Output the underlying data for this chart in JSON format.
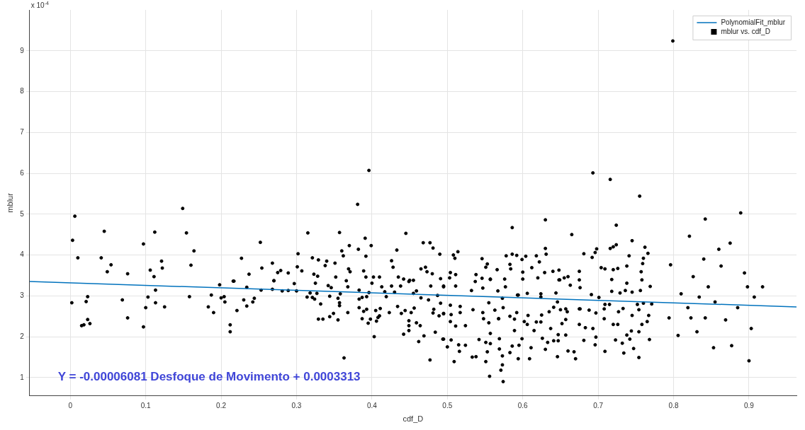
{
  "chart_data": {
    "type": "scatter",
    "xlabel": "cdf_D",
    "ylabel": "mblur",
    "xlim": [
      -0.054,
      0.963
    ],
    "xticks": [
      0,
      0.1,
      0.2,
      0.3,
      0.4,
      0.5,
      0.6,
      0.7,
      0.8,
      0.9
    ],
    "ylim": [
      0.55,
      10
    ],
    "yticks": [
      1,
      2,
      3,
      4,
      5,
      6,
      7,
      8,
      9
    ],
    "grid": true,
    "legend": "top right",
    "marker": "circle",
    "annotations": [
      "x 10$^{-4}$",
      "Y = -0.00006081 Desfoque de Movimento + 0.0003313"
    ],
    "series": [
      {
        "name": "PolynomialFit_mblur",
        "type": "line",
        "color": "#0072bd",
        "marker": "none",
        "x": [
          -0.054,
          0.963
        ],
        "values": [
          3.35,
          2.73
        ]
      },
      {
        "name": "mblur vs. cdf_D",
        "color": "#000000",
        "x": [
          0.006,
          0.003,
          0.01,
          0.045,
          0.041,
          0.054,
          0.049,
          0.076,
          0.097,
          0.112,
          0.106,
          0.111,
          0.121,
          0.122,
          0.149,
          0.154,
          0.164,
          0.16,
          0.216,
          0.227,
          0.002,
          0.015,
          0.018,
          0.021,
          0.023,
          0.023,
          0.026,
          0.069,
          0.076,
          0.097,
          0.1,
          0.103,
          0.113,
          0.113,
          0.125,
          0.158,
          0.183,
          0.187,
          0.19,
          0.198,
          0.2,
          0.204,
          0.205,
          0.212,
          0.212,
          0.217,
          0.221,
          0.396,
          0.381,
          0.315,
          0.357,
          0.252,
          0.302,
          0.391,
          0.445,
          0.468,
          0.477,
          0.481,
          0.49,
          0.37,
          0.382,
          0.399,
          0.36,
          0.362,
          0.392,
          0.321,
          0.329,
          0.34,
          0.338,
          0.351,
          0.268,
          0.254,
          0.279,
          0.275,
          0.289,
          0.301,
          0.307,
          0.369,
          0.371,
          0.389,
          0.426,
          0.428,
          0.433,
          0.465,
          0.471,
          0.473,
          0.48,
          0.435,
          0.442,
          0.45,
          0.455,
          0.491,
          0.237,
          0.27,
          0.323,
          0.328,
          0.352,
          0.392,
          0.402,
          0.41,
          0.693,
          0.716,
          0.755,
          0.63,
          0.586,
          0.665,
          0.724,
          0.745,
          0.724,
          0.72,
          0.716,
          0.762,
          0.766,
          0.698,
          0.696,
          0.692,
          0.681,
          0.63,
          0.631,
          0.622,
          0.618,
          0.578,
          0.586,
          0.592,
          0.599,
          0.604,
          0.583,
          0.584,
          0.6,
          0.612,
          0.629,
          0.64,
          0.648,
          0.675,
          0.508,
          0.514,
          0.51,
          0.504,
          0.511,
          0.546,
          0.553,
          0.551,
          0.566,
          0.538,
          0.546,
          0.557,
          0.726,
          0.738,
          0.741,
          0.76,
          0.759,
          0.757,
          0.72,
          0.704,
          0.709,
          0.66,
          0.655,
          0.648,
          0.363,
          0.477,
          0.403,
          0.462,
          0.469,
          0.484,
          0.494,
          0.442,
          0.449,
          0.449,
          0.459,
          0.464,
          0.449,
          0.395,
          0.398,
          0.406,
          0.387,
          0.329,
          0.335,
          0.355,
          0.344,
          0.349,
          0.368,
          0.408,
          0.41,
          0.389,
          0.383,
          0.393,
          0.405,
          0.411,
          0.423,
          0.434,
          0.439,
          0.444,
          0.452,
          0.456,
          0.481,
          0.482,
          0.489,
          0.495,
          0.332,
          0.357,
          0.357,
          0.355,
          0.344,
          0.314,
          0.321,
          0.324,
          0.327,
          0.318,
          0.23,
          0.234,
          0.242,
          0.244,
          0.253,
          0.268,
          0.281,
          0.289,
          0.3,
          0.234,
          0.27,
          0.297,
          0.325,
          0.342,
          0.346,
          0.366,
          0.368,
          0.358,
          0.383,
          0.387,
          0.393,
          0.396,
          0.383,
          0.4,
          0.413,
          0.426,
          0.417,
          0.419,
          0.43,
          0.438,
          0.449,
          0.459,
          0.455,
          0.465,
          0.475,
          0.478,
          0.487,
          0.491,
          0.495,
          0.574,
          0.571,
          0.573,
          0.556,
          0.509,
          0.551,
          0.533,
          0.538,
          0.573,
          0.594,
          0.609,
          0.646,
          0.67,
          0.709,
          0.734,
          0.754,
          0.516,
          0.553,
          0.583,
          0.63,
          0.66,
          0.668,
          0.747,
          0.5,
          0.515,
          0.524,
          0.551,
          0.557,
          0.569,
          0.586,
          0.595,
          0.611,
          0.633,
          0.647,
          0.681,
          0.696,
          0.723,
          0.732,
          0.768,
          0.495,
          0.505,
          0.542,
          0.569,
          0.599,
          0.626,
          0.641,
          0.697,
          0.742,
          0.557,
          0.589,
          0.615,
          0.647,
          0.657,
          0.693,
          0.738,
          0.744,
          0.754,
          0.637,
          0.504,
          0.511,
          0.524,
          0.548,
          0.555,
          0.568,
          0.589,
          0.602,
          0.606,
          0.618,
          0.624,
          0.652,
          0.657,
          0.675,
          0.683,
          0.708,
          0.72,
          0.726,
          0.758,
          0.765,
          0.495,
          0.505,
          0.517,
          0.534,
          0.547,
          0.568,
          0.574,
          0.583,
          0.592,
          0.607,
          0.625,
          0.635,
          0.65,
          0.659,
          0.676,
          0.688,
          0.697,
          0.708,
          0.727,
          0.745,
          0.754,
          0.767,
          0.504,
          0.517,
          0.555,
          0.563,
          0.573,
          0.593,
          0.624,
          0.641,
          0.646,
          0.657,
          0.675,
          0.709,
          0.715,
          0.733,
          0.752,
          0.76,
          0.771,
          0.495,
          0.511,
          0.532,
          0.547,
          0.567,
          0.577,
          0.594,
          0.606,
          0.624,
          0.644,
          0.663,
          0.676,
          0.691,
          0.701,
          0.718,
          0.729,
          0.736,
          0.745,
          0.756,
          0.769,
          0.503,
          0.537,
          0.557,
          0.576,
          0.6,
          0.62,
          0.649,
          0.675,
          0.718,
          0.738,
          0.758,
          0.799,
          0.889,
          0.842,
          0.875,
          0.86,
          0.821,
          0.84,
          0.826,
          0.846,
          0.834,
          0.855,
          0.819,
          0.869,
          0.842,
          0.831,
          0.877,
          0.9,
          0.853,
          0.898,
          0.918,
          0.907,
          0.885,
          0.894,
          0.806,
          0.81,
          0.796,
          0.863,
          0.903,
          0.823,
          0.794
        ],
        "values": [
          4.95,
          4.36,
          3.93,
          4.58,
          3.93,
          3.76,
          3.59,
          3.54,
          4.27,
          4.56,
          3.63,
          3.47,
          3.85,
          3.68,
          5.14,
          4.54,
          4.1,
          3.75,
          3.36,
          3.92,
          2.83,
          2.27,
          2.29,
          2.86,
          2.98,
          2.42,
          2.32,
          2.9,
          2.46,
          2.24,
          2.71,
          2.97,
          3.14,
          2.83,
          2.73,
          2.98,
          2.73,
          3.02,
          2.59,
          3.27,
          2.95,
          2.98,
          2.85,
          2.29,
          2.12,
          3.36,
          2.64,
          6.07,
          5.24,
          4.54,
          4.55,
          4.31,
          4.03,
          4.41,
          4.53,
          4.3,
          4.3,
          4.17,
          4.02,
          4.23,
          4.14,
          4.23,
          4.1,
          3.98,
          3.97,
          3.93,
          3.88,
          3.85,
          3.74,
          3.8,
          3.8,
          3.68,
          3.62,
          3.57,
          3.56,
          3.71,
          3.61,
          3.66,
          3.59,
          3.61,
          3.86,
          3.7,
          4.12,
          3.66,
          3.7,
          3.59,
          3.54,
          3.46,
          3.41,
          3.38,
          3.38,
          3.42,
          3.53,
          3.37,
          3.53,
          3.48,
          3.46,
          3.46,
          3.46,
          3.46,
          6.01,
          5.85,
          5.44,
          4.86,
          4.67,
          4.5,
          4.73,
          4.35,
          4.25,
          4.2,
          4.16,
          4.19,
          4.04,
          4.15,
          4.06,
          3.94,
          4.03,
          4.16,
          4.02,
          3.83,
          3.98,
          3.98,
          4.02,
          3.99,
          3.89,
          3.97,
          3.77,
          3.66,
          3.58,
          3.69,
          3.57,
          3.6,
          3.63,
          3.6,
          4.0,
          4.08,
          3.92,
          3.57,
          3.52,
          3.91,
          3.78,
          3.7,
          3.64,
          3.52,
          3.43,
          3.41,
          3.67,
          3.73,
          3.98,
          3.92,
          3.79,
          3.59,
          3.64,
          3.69,
          3.66,
          3.47,
          3.44,
          3.39,
          1.48,
          1.43,
          2.0,
          1.88,
          2.02,
          2.11,
          1.94,
          2.06,
          2.15,
          2.27,
          2.34,
          2.27,
          2.39,
          2.33,
          2.43,
          2.38,
          2.44,
          2.43,
          2.43,
          2.41,
          2.49,
          2.57,
          2.59,
          2.47,
          2.51,
          2.62,
          2.71,
          2.67,
          2.64,
          2.69,
          2.59,
          2.74,
          2.57,
          2.64,
          2.59,
          2.7,
          2.58,
          2.67,
          2.51,
          2.56,
          2.8,
          2.76,
          2.83,
          2.94,
          2.99,
          2.97,
          2.96,
          2.92,
          3.06,
          3.07,
          2.9,
          2.75,
          2.85,
          2.94,
          3.14,
          3.16,
          3.12,
          3.13,
          3.12,
          3.21,
          3.37,
          3.3,
          3.31,
          3.25,
          3.2,
          3.37,
          3.22,
          3.05,
          2.92,
          2.96,
          2.98,
          3.08,
          3.14,
          3.31,
          3.22,
          3.24,
          3.1,
          2.98,
          3.09,
          3.24,
          3.35,
          3.12,
          3.06,
          2.95,
          2.9,
          3.24,
          3.01,
          2.82,
          3.22,
          0.9,
          1.18,
          1.31,
          1.03,
          1.39,
          1.39,
          1.5,
          1.51,
          1.53,
          1.46,
          1.46,
          1.51,
          1.46,
          1.64,
          1.6,
          1.49,
          1.64,
          1.63,
          1.61,
          1.69,
          1.65,
          1.63,
          1.71,
          1.75,
          1.8,
          1.79,
          1.86,
          1.83,
          1.7,
          1.77,
          1.79,
          1.73,
          1.86,
          1.9,
          1.91,
          1.8,
          1.92,
          1.84,
          1.93,
          1.94,
          1.92,
          1.93,
          1.95,
          1.95,
          1.96,
          1.9,
          1.99,
          1.94,
          2.08,
          2.15,
          2.15,
          2.05,
          2.04,
          2.2,
          2.04,
          2.14,
          2.12,
          2.2,
          2.37,
          2.26,
          2.27,
          2.44,
          2.34,
          2.44,
          2.43,
          2.37,
          2.3,
          2.36,
          2.36,
          2.32,
          2.42,
          2.3,
          2.22,
          2.44,
          2.3,
          2.3,
          2.3,
          2.37,
          2.57,
          2.54,
          2.59,
          2.66,
          2.59,
          2.44,
          2.71,
          2.5,
          2.59,
          2.52,
          2.53,
          2.61,
          2.66,
          2.61,
          2.68,
          2.65,
          2.58,
          2.68,
          2.61,
          2.52,
          2.66,
          2.52,
          2.77,
          2.74,
          2.83,
          2.65,
          2.94,
          3.02,
          2.97,
          2.72,
          2.85,
          2.68,
          2.68,
          2.79,
          2.79,
          2.69,
          2.79,
          2.82,
          2.8,
          3.24,
          3.24,
          3.13,
          3.19,
          3.12,
          3.22,
          3.02,
          3.06,
          3.05,
          3.07,
          3.26,
          3.2,
          3.03,
          2.96,
          3.11,
          3.07,
          3.13,
          3.09,
          3.13,
          3.23,
          3.44,
          3.35,
          3.4,
          3.41,
          3.41,
          3.44,
          3.39,
          3.39,
          3.4,
          3.31,
          3.39,
          9.24,
          5.03,
          4.88,
          4.29,
          4.14,
          4.46,
          3.9,
          3.47,
          3.22,
          2.97,
          2.85,
          2.71,
          2.41,
          2.46,
          2.12,
          1.78,
          1.41,
          1.73,
          3.22,
          3.22,
          2.97,
          2.71,
          3.56,
          2.03,
          3.05,
          3.76,
          3.73,
          2.2,
          2.46,
          2.46
        ]
      }
    ]
  }
}
